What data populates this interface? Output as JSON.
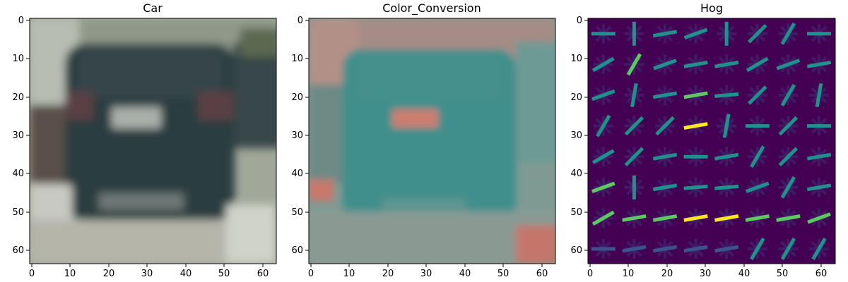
{
  "figure": {
    "panels": [
      {
        "title": "Car",
        "kind": "photo",
        "xticks": [
          "0",
          "10",
          "20",
          "30",
          "40",
          "50",
          "60"
        ],
        "yticks": [
          "0",
          "10",
          "20",
          "30",
          "40",
          "50",
          "60"
        ]
      },
      {
        "title": "Color_Conversion",
        "kind": "photo",
        "xticks": [
          "0",
          "10",
          "20",
          "30",
          "40",
          "50",
          "60"
        ],
        "yticks": [
          "0",
          "10",
          "20",
          "30",
          "40",
          "50",
          "60"
        ]
      },
      {
        "title": "Hog",
        "kind": "hog",
        "xticks": [
          "0",
          "10",
          "20",
          "30",
          "40",
          "50",
          "60"
        ],
        "yticks": [
          "0",
          "10",
          "20",
          "30",
          "40",
          "50",
          "60"
        ]
      }
    ],
    "tick_values": [
      0,
      10,
      20,
      30,
      40,
      50,
      60
    ],
    "axis_range": [
      -0.5,
      63.5
    ],
    "colors": {
      "panel1_background": "#9aa292",
      "panel1_car": "#2c3d3f",
      "panel2_background": "#7d9790",
      "panel2_car": "#3f8f8c",
      "panel2_accent": "#d07f72",
      "hog_background": "#440154",
      "hog_low": "#3b528b",
      "hog_mid": "#21918c",
      "hog_high": "#5ec962",
      "hog_max": "#fde725"
    }
  }
}
